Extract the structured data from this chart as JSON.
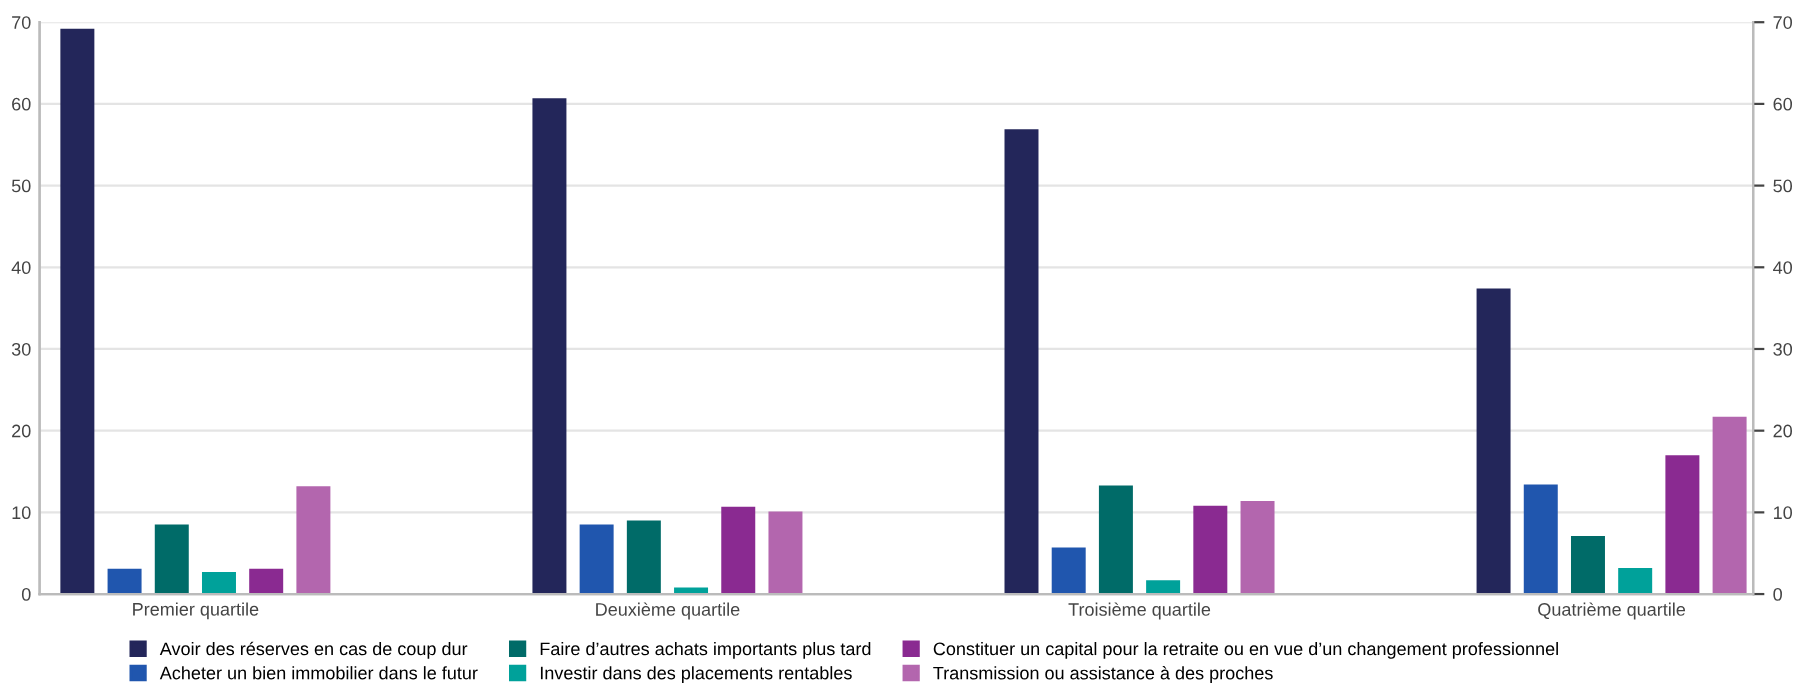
{
  "chart_data": {
    "type": "bar",
    "categories": [
      "Premier quartile",
      "Deuxième quartile",
      "Troisième quartile",
      "Quatrième quartile"
    ],
    "series": [
      {
        "name": "Avoir des réserves en cas de coup dur",
        "color": "#23265a",
        "values": [
          69.2,
          60.7,
          56.9,
          37.4
        ]
      },
      {
        "name": "Acheter un bien immobilier dans le futur",
        "color": "#2056ae",
        "values": [
          3.1,
          8.5,
          5.7,
          13.4
        ]
      },
      {
        "name": "Faire d’autres achats importants plus tard",
        "color": "#006b68",
        "values": [
          8.5,
          9.0,
          13.3,
          7.1
        ]
      },
      {
        "name": "Investir dans des placements rentables",
        "color": "#00a19a",
        "values": [
          2.7,
          0.8,
          1.7,
          3.2
        ]
      },
      {
        "name": "Constituer un capital pour la retraite ou en vue d’un changement professionnel",
        "color": "#8a2a91",
        "values": [
          3.1,
          10.7,
          10.8,
          17.0
        ]
      },
      {
        "name": "Transmission ou assistance à des proches",
        "color": "#b366ae",
        "values": [
          13.2,
          10.1,
          11.4,
          21.7
        ]
      }
    ],
    "ylim": [
      0,
      70
    ],
    "yticks": [
      0,
      10,
      20,
      30,
      40,
      50,
      60,
      70
    ],
    "y2lim": [
      0,
      70
    ],
    "y2ticks": [
      0,
      10,
      20,
      30,
      40,
      50,
      60,
      70
    ],
    "grid": "y",
    "legend": "bottom"
  }
}
